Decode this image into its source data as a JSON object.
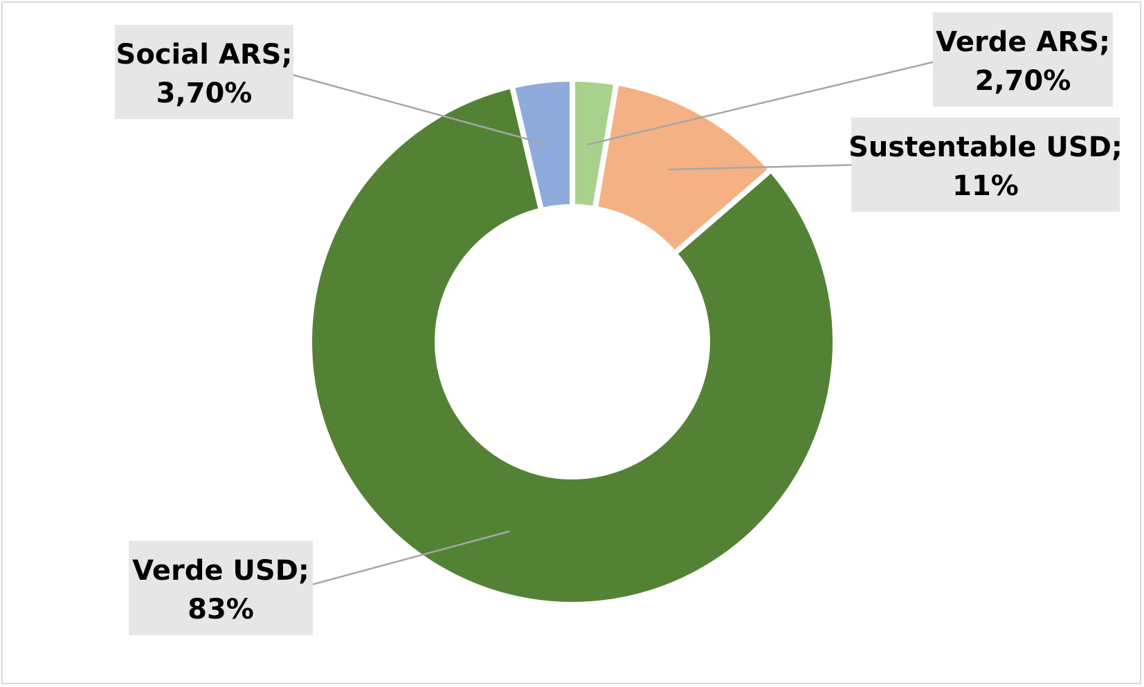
{
  "chart_data": {
    "type": "pie",
    "variant": "donut",
    "title": "",
    "start": "top",
    "direction": "clockwise",
    "slices": [
      {
        "label": "Verde ARS",
        "value": 2.7,
        "display": "2,70%",
        "color": "#a9d18e"
      },
      {
        "label": "Sustentable USD",
        "value": 11,
        "display": "11%",
        "color": "#f4b183"
      },
      {
        "label": "Verde USD",
        "value": 83,
        "display": "83%",
        "color": "#548235"
      },
      {
        "label": "Social ARS",
        "value": 3.7,
        "display": "3,70%",
        "color": "#8faadc"
      }
    ],
    "legend": "none",
    "data_labels": "callout",
    "label_separator": ";"
  }
}
